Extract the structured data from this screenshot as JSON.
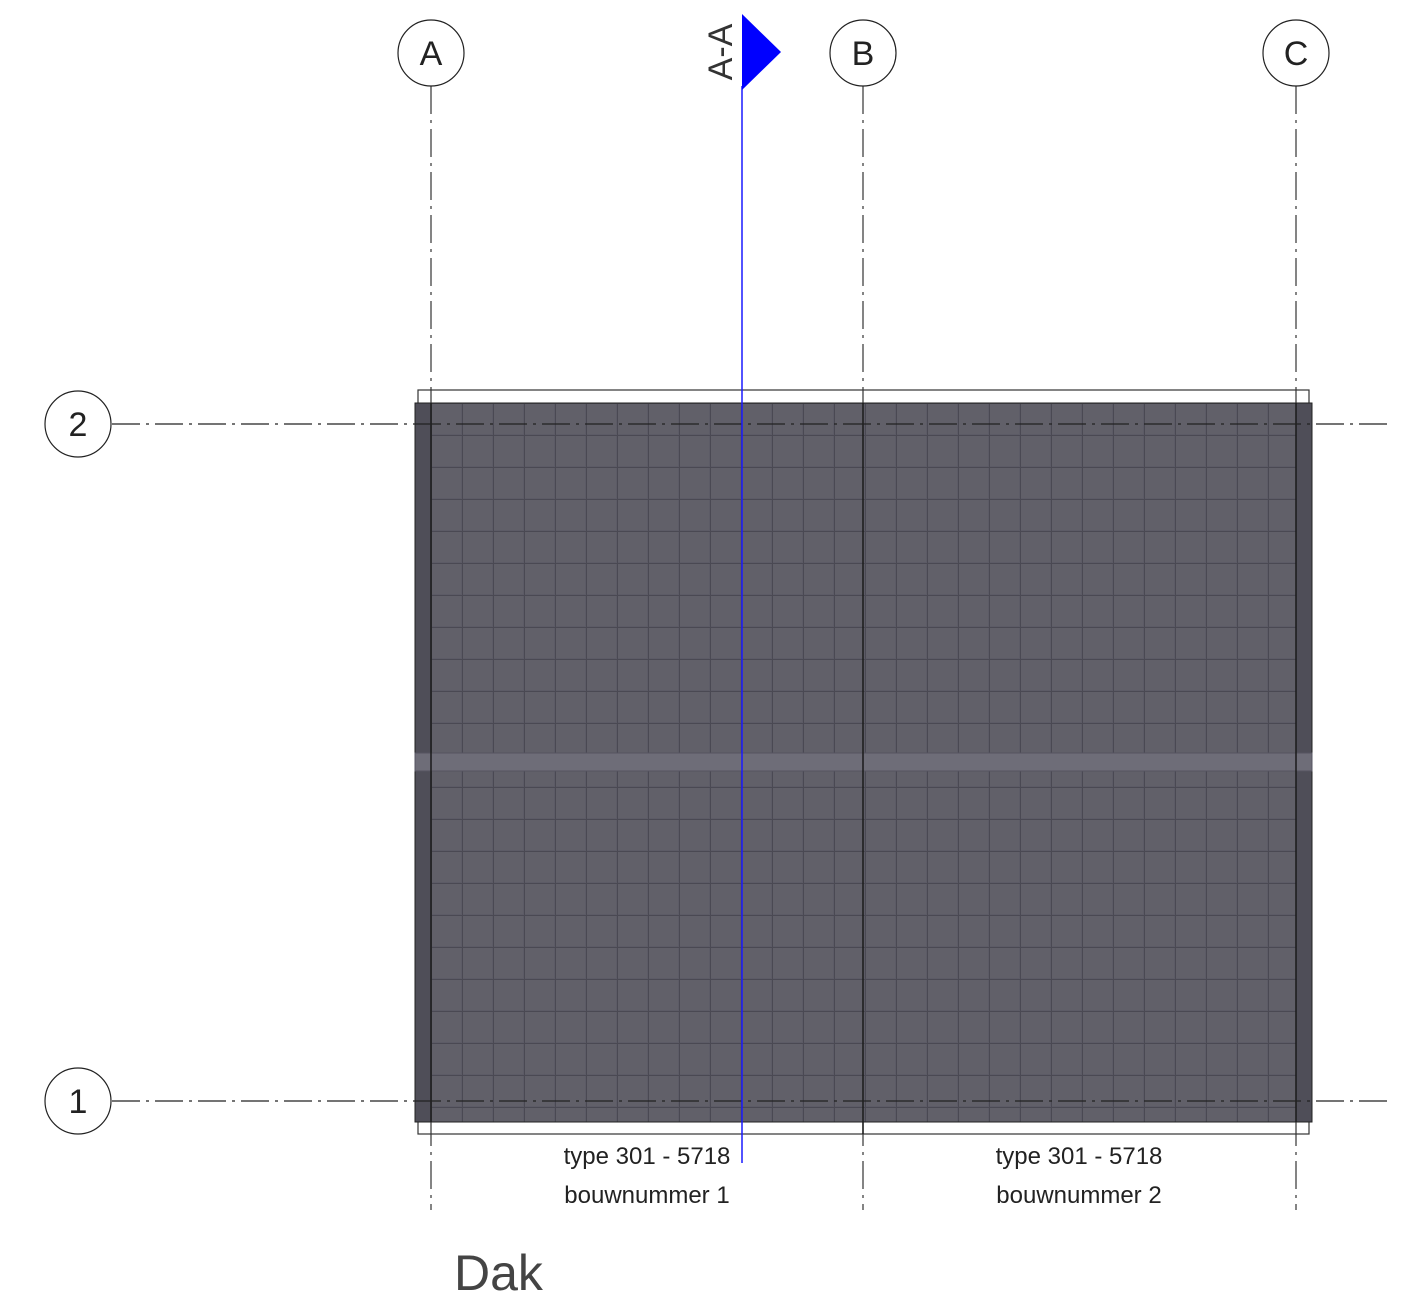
{
  "grid": {
    "columns": [
      {
        "id": "A",
        "label": "A"
      },
      {
        "id": "B",
        "label": "B"
      },
      {
        "id": "C",
        "label": "C"
      }
    ],
    "rows": [
      {
        "id": "2",
        "label": "2"
      },
      {
        "id": "1",
        "label": "1"
      }
    ]
  },
  "section_marker": {
    "label": "A-A",
    "color": "#0000ff"
  },
  "units": [
    {
      "type": "type 301 - 5718",
      "number": "bouwnummer 1"
    },
    {
      "type": "type 301 - 5718",
      "number": "bouwnummer 2"
    }
  ],
  "roof": {
    "fill_color": "#5c5b66",
    "tile_line_color": "#4a4953"
  },
  "view_title": "Dak"
}
